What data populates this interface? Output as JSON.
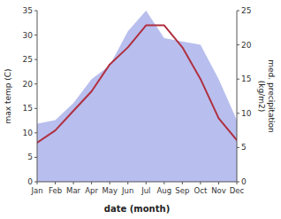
{
  "chart_data": {
    "type": "line",
    "xlabel": "date (month)",
    "ylabel": "max temp (C)",
    "y2label": "med. precipitation\n(kg/m2)",
    "categories": [
      "Jan",
      "Feb",
      "Mar",
      "Apr",
      "May",
      "Jun",
      "Jul",
      "Aug",
      "Sep",
      "Oct",
      "Nov",
      "Dec"
    ],
    "series": [
      {
        "type": "area",
        "axis": "y2",
        "color": "#b8bfee",
        "values": [
          8.5,
          9.0,
          11.5,
          15.0,
          17.0,
          22.0,
          25.0,
          21.0,
          20.5,
          20.0,
          15.0,
          9.0
        ]
      },
      {
        "type": "line",
        "color": "#b03040",
        "values": [
          8.0,
          10.5,
          14.5,
          18.5,
          24.0,
          27.5,
          32.0,
          32.0,
          27.5,
          21.0,
          13.0,
          8.5
        ]
      }
    ],
    "ylim": [
      0,
      35
    ],
    "yticks": [
      0,
      5,
      10,
      15,
      20,
      25,
      30,
      35
    ],
    "y2lim": [
      0,
      25
    ],
    "y2ticks": [
      0,
      5,
      10,
      15,
      20,
      25
    ],
    "grid": false
  }
}
